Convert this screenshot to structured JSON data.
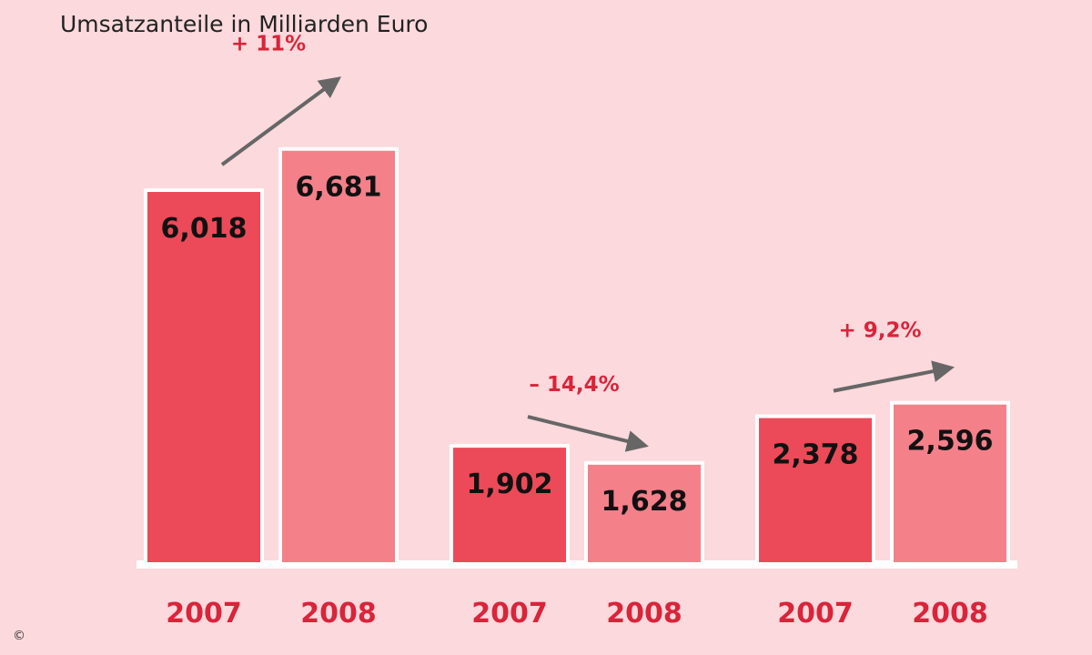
{
  "colors": {
    "background": "#fbd9dc",
    "bar_2007": "#ec4a58",
    "bar_2008": "#f4808a",
    "bar_border": "#ffffff",
    "label_red": "#d9243a",
    "arrow": "#666666"
  },
  "copyright": "©",
  "chart_data": {
    "type": "bar",
    "title": "Umsatzanteile in Milliarden Euro",
    "xlabel": "",
    "ylabel": "",
    "ylim": [
      0,
      8.2
    ],
    "grid": false,
    "legend": "none",
    "groups": [
      {
        "bars": [
          {
            "year": "2007",
            "value": 6.018,
            "label": "6,018"
          },
          {
            "year": "2008",
            "value": 6.681,
            "label": "6,681"
          }
        ],
        "change": "+ 11%",
        "trend": "up"
      },
      {
        "bars": [
          {
            "year": "2007",
            "value": 1.902,
            "label": "1,902"
          },
          {
            "year": "2008",
            "value": 1.628,
            "label": "1,628"
          }
        ],
        "change": "– 14,4%",
        "trend": "down"
      },
      {
        "bars": [
          {
            "year": "2007",
            "value": 2.378,
            "label": "2,378"
          },
          {
            "year": "2008",
            "value": 2.596,
            "label": "2,596"
          }
        ],
        "change": "+ 9,2%",
        "trend": "up"
      }
    ]
  }
}
